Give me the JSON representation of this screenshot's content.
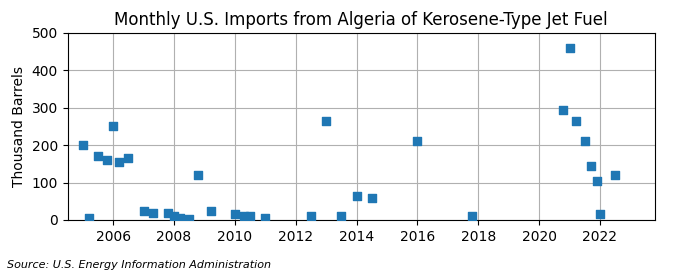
{
  "chart_data": {
    "type": "scatter",
    "title": "Monthly U.S. Imports from Algeria of Kerosene-Type Jet Fuel",
    "ylabel": "Thousand Barrels",
    "source": "Source: U.S. Energy Information Administration",
    "marker": "square",
    "grid": true,
    "xlim": [
      2004.5,
      2023.8
    ],
    "xticks": [
      2006,
      2008,
      2010,
      2012,
      2014,
      2016,
      2018,
      2020,
      2022
    ],
    "ylim": [
      0,
      500
    ],
    "yticks": [
      0,
      100,
      200,
      300,
      400,
      500
    ],
    "x": [
      2005.0,
      2005.2,
      2005.5,
      2005.8,
      2006.0,
      2006.2,
      2006.5,
      2007.0,
      2007.3,
      2007.8,
      2008.0,
      2008.2,
      2008.5,
      2008.8,
      2009.2,
      2010.0,
      2010.3,
      2010.5,
      2011.0,
      2012.5,
      2013.0,
      2013.5,
      2014.0,
      2014.5,
      2016.0,
      2017.8,
      2020.8,
      2021.0,
      2021.2,
      2021.5,
      2021.7,
      2021.9,
      2022.0,
      2022.5
    ],
    "values": [
      200,
      5,
      170,
      160,
      250,
      155,
      165,
      25,
      20,
      18,
      12,
      5,
      3,
      120,
      25,
      15,
      12,
      10,
      5,
      10,
      265,
      12,
      65,
      58,
      210,
      10,
      295,
      460,
      265,
      210,
      145,
      105,
      15,
      120
    ]
  }
}
